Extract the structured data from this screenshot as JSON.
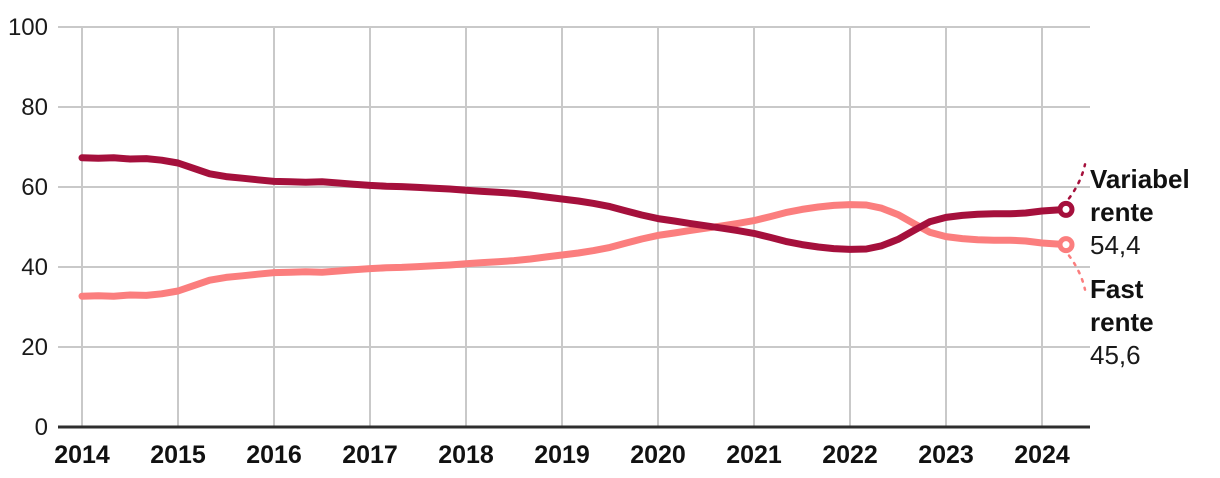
{
  "chart_data": {
    "type": "line",
    "title": "",
    "xlabel": "",
    "ylabel": "",
    "grid": true,
    "ylim": [
      0,
      100
    ],
    "y_ticks": [
      0,
      20,
      40,
      60,
      80,
      100
    ],
    "x_ticks": [
      "2014",
      "2015",
      "2016",
      "2017",
      "2018",
      "2019",
      "2020",
      "2021",
      "2022",
      "2023",
      "2024"
    ],
    "legend_position": "right-end-labels",
    "colors": {
      "grid": "#c9c9c9",
      "axis": "#2e2e2e",
      "tick_label": "#1a1a1a"
    },
    "series": [
      {
        "id": "fast",
        "name": "Fast rente",
        "label_lines": [
          "Fast",
          "rente"
        ],
        "end_value": 45.6,
        "end_value_label": "45,6",
        "color": "#FB7E7E",
        "points": [
          [
            2014.0,
            32.7
          ],
          [
            2014.17,
            32.8
          ],
          [
            2014.33,
            32.7
          ],
          [
            2014.5,
            33.0
          ],
          [
            2014.67,
            32.9
          ],
          [
            2014.83,
            33.3
          ],
          [
            2015.0,
            34.0
          ],
          [
            2015.17,
            35.4
          ],
          [
            2015.33,
            36.7
          ],
          [
            2015.5,
            37.4
          ],
          [
            2015.67,
            37.8
          ],
          [
            2015.83,
            38.2
          ],
          [
            2016.0,
            38.6
          ],
          [
            2016.17,
            38.7
          ],
          [
            2016.33,
            38.8
          ],
          [
            2016.5,
            38.7
          ],
          [
            2016.67,
            39.0
          ],
          [
            2016.83,
            39.3
          ],
          [
            2017.0,
            39.6
          ],
          [
            2017.17,
            39.8
          ],
          [
            2017.33,
            39.9
          ],
          [
            2017.5,
            40.1
          ],
          [
            2017.67,
            40.3
          ],
          [
            2017.83,
            40.5
          ],
          [
            2018.0,
            40.8
          ],
          [
            2018.17,
            41.1
          ],
          [
            2018.33,
            41.3
          ],
          [
            2018.5,
            41.6
          ],
          [
            2018.67,
            42.0
          ],
          [
            2018.83,
            42.5
          ],
          [
            2019.0,
            43.0
          ],
          [
            2019.17,
            43.5
          ],
          [
            2019.33,
            44.1
          ],
          [
            2019.5,
            44.9
          ],
          [
            2019.67,
            46.0
          ],
          [
            2019.83,
            47.0
          ],
          [
            2020.0,
            47.9
          ],
          [
            2020.17,
            48.5
          ],
          [
            2020.33,
            49.1
          ],
          [
            2020.5,
            49.7
          ],
          [
            2020.67,
            50.3
          ],
          [
            2020.83,
            50.9
          ],
          [
            2021.0,
            51.6
          ],
          [
            2021.17,
            52.6
          ],
          [
            2021.33,
            53.6
          ],
          [
            2021.5,
            54.4
          ],
          [
            2021.67,
            55.0
          ],
          [
            2021.83,
            55.4
          ],
          [
            2022.0,
            55.6
          ],
          [
            2022.17,
            55.5
          ],
          [
            2022.33,
            54.7
          ],
          [
            2022.5,
            53.1
          ],
          [
            2022.67,
            50.8
          ],
          [
            2022.83,
            48.7
          ],
          [
            2023.0,
            47.6
          ],
          [
            2023.17,
            47.1
          ],
          [
            2023.33,
            46.8
          ],
          [
            2023.5,
            46.7
          ],
          [
            2023.67,
            46.7
          ],
          [
            2023.83,
            46.5
          ],
          [
            2024.0,
            46.0
          ],
          [
            2024.25,
            45.6
          ]
        ]
      },
      {
        "id": "variabel",
        "name": "Variabel rente",
        "label_lines": [
          "Variabel",
          "rente"
        ],
        "end_value": 54.4,
        "end_value_label": "54,4",
        "color": "#A5103C",
        "points": [
          [
            2014.0,
            67.3
          ],
          [
            2014.17,
            67.2
          ],
          [
            2014.33,
            67.3
          ],
          [
            2014.5,
            67.0
          ],
          [
            2014.67,
            67.1
          ],
          [
            2014.83,
            66.7
          ],
          [
            2015.0,
            66.0
          ],
          [
            2015.17,
            64.6
          ],
          [
            2015.33,
            63.3
          ],
          [
            2015.5,
            62.6
          ],
          [
            2015.67,
            62.2
          ],
          [
            2015.83,
            61.8
          ],
          [
            2016.0,
            61.4
          ],
          [
            2016.17,
            61.3
          ],
          [
            2016.33,
            61.2
          ],
          [
            2016.5,
            61.3
          ],
          [
            2016.67,
            61.0
          ],
          [
            2016.83,
            60.7
          ],
          [
            2017.0,
            60.4
          ],
          [
            2017.17,
            60.2
          ],
          [
            2017.33,
            60.1
          ],
          [
            2017.5,
            59.9
          ],
          [
            2017.67,
            59.7
          ],
          [
            2017.83,
            59.5
          ],
          [
            2018.0,
            59.2
          ],
          [
            2018.17,
            58.9
          ],
          [
            2018.33,
            58.7
          ],
          [
            2018.5,
            58.4
          ],
          [
            2018.67,
            58.0
          ],
          [
            2018.83,
            57.5
          ],
          [
            2019.0,
            57.0
          ],
          [
            2019.17,
            56.5
          ],
          [
            2019.33,
            55.9
          ],
          [
            2019.5,
            55.1
          ],
          [
            2019.67,
            54.0
          ],
          [
            2019.83,
            53.0
          ],
          [
            2020.0,
            52.1
          ],
          [
            2020.17,
            51.5
          ],
          [
            2020.33,
            50.9
          ],
          [
            2020.5,
            50.3
          ],
          [
            2020.67,
            49.7
          ],
          [
            2020.83,
            49.1
          ],
          [
            2021.0,
            48.4
          ],
          [
            2021.17,
            47.4
          ],
          [
            2021.33,
            46.4
          ],
          [
            2021.5,
            45.6
          ],
          [
            2021.67,
            45.0
          ],
          [
            2021.83,
            44.6
          ],
          [
            2022.0,
            44.4
          ],
          [
            2022.17,
            44.5
          ],
          [
            2022.33,
            45.3
          ],
          [
            2022.5,
            46.9
          ],
          [
            2022.67,
            49.2
          ],
          [
            2022.83,
            51.3
          ],
          [
            2023.0,
            52.4
          ],
          [
            2023.17,
            52.9
          ],
          [
            2023.33,
            53.2
          ],
          [
            2023.5,
            53.3
          ],
          [
            2023.67,
            53.3
          ],
          [
            2023.83,
            53.5
          ],
          [
            2024.0,
            54.0
          ],
          [
            2024.25,
            54.4
          ]
        ]
      }
    ]
  }
}
